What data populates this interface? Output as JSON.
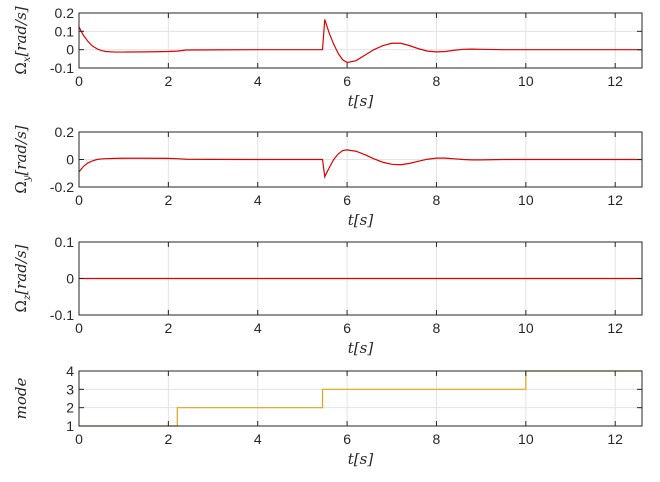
{
  "colors": {
    "red_series": "#e00000",
    "mode_series": "#e3a317",
    "axis": "#262626",
    "grid": "#e3e3e3"
  },
  "chart_data": [
    {
      "type": "line",
      "ylabel": "Ωx[rad/s]",
      "xlabel": "t[s]",
      "xlim": [
        0,
        12.6
      ],
      "ylim": [
        -0.1,
        0.2
      ],
      "grid": true,
      "xticks": [
        0,
        2,
        4,
        6,
        8,
        10,
        12
      ],
      "xtick_labels": [
        "0",
        "2",
        "4",
        "6",
        "8",
        "10",
        "12"
      ],
      "yticks": [
        -0.1,
        0,
        0.1,
        0.2
      ],
      "ytick_labels": [
        "-0.1",
        "0",
        "0.1",
        "0.2"
      ],
      "color": "#e00000",
      "x": [
        0,
        0.05,
        0.1,
        0.2,
        0.3,
        0.4,
        0.5,
        0.6,
        0.8,
        1.0,
        1.5,
        2.0,
        2.2,
        2.4,
        3.0,
        4.0,
        5.0,
        5.45,
        5.5,
        5.6,
        5.7,
        5.8,
        5.9,
        6.0,
        6.2,
        6.4,
        6.6,
        6.8,
        7.0,
        7.2,
        7.4,
        7.6,
        7.8,
        8.0,
        8.2,
        8.4,
        8.6,
        8.8,
        9.0,
        9.5,
        10.0,
        11.0,
        12.0,
        12.6
      ],
      "y": [
        0.125,
        0.1,
        0.078,
        0.045,
        0.02,
        0.005,
        -0.005,
        -0.01,
        -0.013,
        -0.013,
        -0.012,
        -0.01,
        -0.008,
        -0.002,
        -0.001,
        0,
        0,
        0,
        0.165,
        0.09,
        0.03,
        -0.02,
        -0.055,
        -0.07,
        -0.06,
        -0.03,
        0,
        0.022,
        0.035,
        0.035,
        0.022,
        0.005,
        -0.008,
        -0.012,
        -0.01,
        -0.003,
        0.002,
        0.003,
        0.002,
        0,
        0,
        0,
        0,
        0
      ]
    },
    {
      "type": "line",
      "ylabel": "Ωy[rad/s]",
      "xlabel": "t[s]",
      "xlim": [
        0,
        12.6
      ],
      "ylim": [
        -0.2,
        0.2
      ],
      "grid": true,
      "xticks": [
        0,
        2,
        4,
        6,
        8,
        10,
        12
      ],
      "xtick_labels": [
        "0",
        "2",
        "4",
        "6",
        "8",
        "10",
        "12"
      ],
      "yticks": [
        -0.2,
        0,
        0.2
      ],
      "ytick_labels": [
        "-0.2",
        "0",
        "0.2"
      ],
      "color": "#e00000",
      "x": [
        0,
        0.05,
        0.1,
        0.2,
        0.3,
        0.4,
        0.5,
        0.6,
        0.8,
        1.0,
        1.5,
        2.0,
        2.2,
        2.4,
        3.0,
        4.0,
        5.0,
        5.45,
        5.5,
        5.6,
        5.7,
        5.8,
        5.9,
        6.0,
        6.2,
        6.4,
        6.6,
        6.8,
        7.0,
        7.2,
        7.4,
        7.6,
        7.8,
        8.0,
        8.2,
        8.4,
        8.6,
        8.8,
        9.0,
        9.5,
        10.0,
        11.0,
        12.0,
        12.6
      ],
      "y": [
        -0.09,
        -0.07,
        -0.05,
        -0.025,
        -0.01,
        0,
        0.004,
        0.006,
        0.008,
        0.009,
        0.009,
        0.008,
        0.006,
        0.002,
        0.001,
        0,
        0,
        0,
        -0.125,
        -0.06,
        0,
        0.04,
        0.065,
        0.07,
        0.06,
        0.035,
        0.005,
        -0.02,
        -0.035,
        -0.038,
        -0.028,
        -0.012,
        0.002,
        0.01,
        0.01,
        0.005,
        0,
        -0.003,
        -0.003,
        0,
        0,
        0,
        0,
        0
      ]
    },
    {
      "type": "line",
      "ylabel": "Ωz[rad/s]",
      "xlabel": "t[s]",
      "xlim": [
        0,
        12.6
      ],
      "ylim": [
        -0.1,
        0.1
      ],
      "grid": true,
      "xticks": [
        0,
        2,
        4,
        6,
        8,
        10,
        12
      ],
      "xtick_labels": [
        "0",
        "2",
        "4",
        "6",
        "8",
        "10",
        "12"
      ],
      "yticks": [
        -0.1,
        0,
        0.1
      ],
      "ytick_labels": [
        "-0.1",
        "0",
        "0.1"
      ],
      "color": "#e00000",
      "x": [
        0,
        12.6
      ],
      "y": [
        0,
        0
      ]
    },
    {
      "type": "line",
      "ylabel": "mode",
      "xlabel": "t[s]",
      "xlim": [
        0,
        12.6
      ],
      "ylim": [
        1,
        4
      ],
      "grid": true,
      "xticks": [
        0,
        2,
        4,
        6,
        8,
        10,
        12
      ],
      "xtick_labels": [
        "0",
        "2",
        "4",
        "6",
        "8",
        "10",
        "12"
      ],
      "yticks": [
        1,
        2,
        3,
        4
      ],
      "ytick_labels": [
        "1",
        "2",
        "3",
        "4"
      ],
      "color": "#e3a317",
      "x": [
        0,
        2.2,
        2.2,
        5.45,
        5.45,
        10.0,
        10.0,
        12.6
      ],
      "y": [
        1,
        1,
        2,
        2,
        3,
        3,
        4,
        4
      ]
    }
  ]
}
